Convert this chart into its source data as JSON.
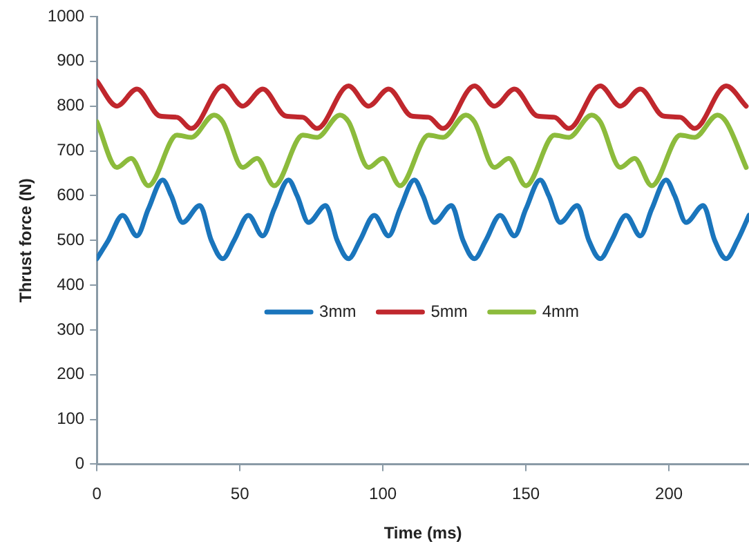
{
  "chart_data": {
    "type": "line",
    "xlabel": "Time (ms)",
    "ylabel": "Thrust force (N)",
    "xlim": [
      0,
      228
    ],
    "xticks": [
      0,
      50,
      100,
      150,
      200
    ],
    "ylim": [
      0,
      1000
    ],
    "yticks": [
      0,
      100,
      200,
      300,
      400,
      500,
      600,
      700,
      800,
      900,
      1000
    ],
    "grid": false,
    "legend": "center",
    "marker": "none",
    "line_style": "solid",
    "series": [
      {
        "name": "3mm",
        "color": "#1a75bc",
        "x": [
          0,
          4,
          9,
          14,
          18,
          23,
          26,
          30,
          36,
          40,
          44,
          48,
          53,
          58,
          62,
          67,
          70,
          74,
          80,
          84,
          88,
          92,
          97,
          102,
          106,
          111,
          114,
          118,
          124,
          128,
          132,
          136,
          141,
          146,
          150,
          155,
          158,
          162,
          168,
          172,
          176,
          180,
          185,
          190,
          194,
          199,
          202,
          206,
          212,
          216,
          220,
          224,
          228
        ],
        "values": [
          459,
          500,
          556,
          510,
          570,
          635,
          600,
          540,
          578,
          500,
          459,
          500,
          556,
          510,
          570,
          635,
          600,
          540,
          578,
          500,
          459,
          500,
          556,
          510,
          570,
          635,
          600,
          540,
          578,
          500,
          459,
          500,
          556,
          510,
          570,
          635,
          600,
          540,
          578,
          500,
          459,
          500,
          556,
          510,
          570,
          635,
          600,
          540,
          578,
          500,
          459,
          500,
          556
        ]
      },
      {
        "name": "5mm",
        "color": "#c0272d",
        "x": [
          0,
          7,
          14,
          22,
          28,
          33,
          44,
          51,
          58,
          66,
          72,
          77,
          88,
          95,
          102,
          110,
          116,
          121,
          132,
          139,
          146,
          154,
          160,
          165,
          176,
          183,
          190,
          198,
          204,
          209,
          220,
          227
        ],
        "values": [
          856,
          800,
          838,
          778,
          775,
          750,
          845,
          800,
          838,
          778,
          775,
          750,
          845,
          800,
          838,
          778,
          775,
          750,
          845,
          800,
          838,
          778,
          775,
          750,
          845,
          800,
          838,
          778,
          775,
          750,
          845,
          800
        ]
      },
      {
        "name": "4mm",
        "color": "#8cbb3c",
        "x": [
          0,
          7,
          12,
          18,
          28,
          33,
          41,
          44,
          51,
          56,
          62,
          72,
          77,
          85,
          88,
          95,
          100,
          106,
          116,
          121,
          129,
          132,
          139,
          144,
          150,
          160,
          165,
          173,
          176,
          183,
          188,
          194,
          204,
          209,
          217,
          220,
          227
        ],
        "values": [
          765,
          663,
          683,
          622,
          735,
          730,
          780,
          765,
          663,
          683,
          622,
          735,
          730,
          780,
          765,
          663,
          683,
          622,
          735,
          730,
          780,
          765,
          663,
          683,
          622,
          735,
          730,
          780,
          765,
          663,
          683,
          622,
          735,
          730,
          780,
          765,
          663
        ]
      }
    ]
  }
}
